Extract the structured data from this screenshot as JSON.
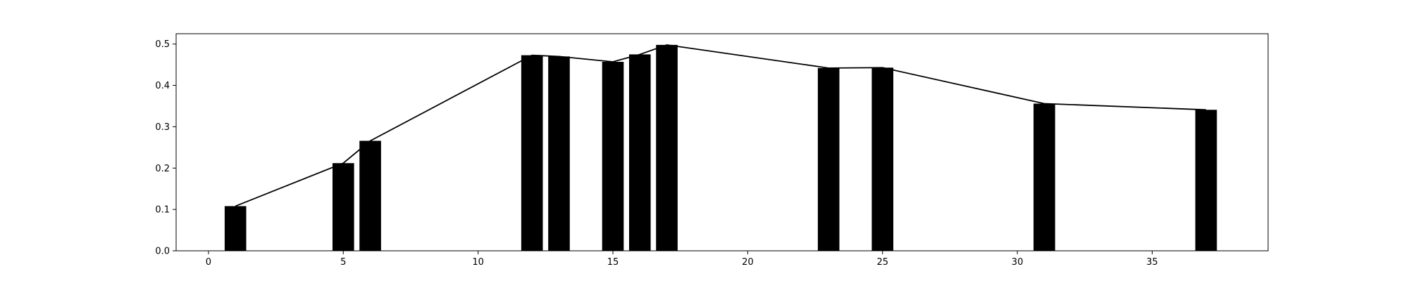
{
  "colors": {
    "bar": "#000000",
    "line": "#000000",
    "axes": "#000000",
    "background": "#ffffff"
  },
  "chart_data": {
    "type": "bar",
    "title": "",
    "xlabel": "",
    "ylabel": "",
    "grid": false,
    "legend": "none",
    "xlim": [
      -1.2,
      39.3
    ],
    "ylim": [
      0,
      0.525
    ],
    "x_ticks": [
      0,
      5,
      10,
      15,
      20,
      25,
      30,
      35
    ],
    "y_ticks": [
      0.0,
      0.1,
      0.2,
      0.3,
      0.4,
      0.5
    ],
    "x_tick_labels": [
      "0",
      "5",
      "10",
      "15",
      "20",
      "25",
      "30",
      "35"
    ],
    "y_tick_labels": [
      "0.0",
      "0.1",
      "0.2",
      "0.3",
      "0.4",
      "0.5"
    ],
    "bar_width": 0.8,
    "bars": [
      {
        "x": 1,
        "y": 0.108
      },
      {
        "x": 5,
        "y": 0.212
      },
      {
        "x": 6,
        "y": 0.266
      },
      {
        "x": 12,
        "y": 0.473
      },
      {
        "x": 13,
        "y": 0.47
      },
      {
        "x": 15,
        "y": 0.457
      },
      {
        "x": 16,
        "y": 0.475
      },
      {
        "x": 17,
        "y": 0.498
      },
      {
        "x": 23,
        "y": 0.442
      },
      {
        "x": 25,
        "y": 0.443
      },
      {
        "x": 31,
        "y": 0.356
      },
      {
        "x": 37,
        "y": 0.341
      }
    ],
    "line": {
      "x": [
        1,
        5,
        6,
        12,
        13,
        15,
        16,
        17,
        23,
        25,
        31,
        37
      ],
      "y": [
        0.108,
        0.212,
        0.266,
        0.473,
        0.47,
        0.457,
        0.475,
        0.498,
        0.442,
        0.443,
        0.356,
        0.341
      ]
    }
  }
}
